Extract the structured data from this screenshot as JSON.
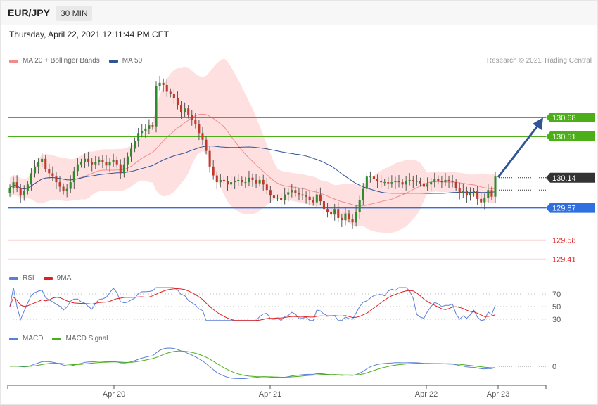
{
  "header": {
    "pair": "EUR/JPY",
    "timeframe": "30 MIN",
    "datetime": "Thursday, April 22, 2021 12:11:44 PM CET"
  },
  "legend_main": [
    {
      "label": "MA 20 + Bollinger Bands",
      "color": "#f28b8b"
    },
    {
      "label": "MA 50",
      "color": "#2f5597"
    }
  ],
  "legend_rsi": [
    {
      "label": "RSI",
      "color": "#5b7fd9"
    },
    {
      "label": "9MA",
      "color": "#e02020"
    }
  ],
  "legend_macd": [
    {
      "label": "MACD",
      "color": "#5b7fd9"
    },
    {
      "label": "MACD Signal",
      "color": "#4caf1a"
    }
  ],
  "credit": "Research © 2021 Trading Central",
  "chart_data": {
    "type": "candlestick",
    "x_ticks": [
      "Apr 20",
      "Apr 21",
      "Apr 22",
      "Apr 23"
    ],
    "price_levels": [
      {
        "label": "130.68",
        "value": 130.68,
        "kind": "resistance",
        "color": "#4caf1a"
      },
      {
        "label": "130.51",
        "value": 130.51,
        "kind": "resistance",
        "color": "#4caf1a"
      },
      {
        "label": "130.14",
        "value": 130.14,
        "kind": "last",
        "color": "#333333"
      },
      {
        "label": "129.87",
        "value": 129.87,
        "kind": "pivot",
        "color": "#2f6fe0"
      },
      {
        "label": "129.58",
        "value": 129.58,
        "kind": "support",
        "color": "#e02020"
      },
      {
        "label": "129.41",
        "value": 129.41,
        "kind": "support",
        "color": "#e02020"
      }
    ],
    "rsi_levels": [
      {
        "label": "70",
        "value": 70
      },
      {
        "label": "50",
        "value": 50
      },
      {
        "label": "30",
        "value": 30
      }
    ],
    "macd_levels": [
      {
        "label": "0",
        "value": 0
      }
    ],
    "close": [
      130.05,
      130.1,
      130.05,
      129.98,
      130.02,
      130.08,
      130.18,
      130.24,
      130.28,
      130.31,
      130.22,
      130.18,
      130.15,
      130.1,
      130.06,
      130.02,
      130.04,
      130.1,
      130.2,
      130.26,
      130.28,
      130.31,
      130.28,
      130.26,
      130.28,
      130.3,
      130.28,
      130.25,
      130.28,
      130.3,
      130.26,
      130.18,
      130.26,
      130.33,
      130.4,
      130.47,
      130.54,
      130.56,
      130.58,
      130.61,
      130.6,
      130.96,
      130.99,
      130.97,
      130.91,
      130.89,
      130.85,
      130.79,
      130.73,
      130.76,
      130.7,
      130.66,
      130.62,
      130.54,
      130.48,
      130.38,
      130.24,
      130.16,
      130.1,
      130.12,
      130.11,
      130.08,
      130.1,
      130.11,
      130.12,
      130.1,
      130.1,
      130.14,
      130.12,
      130.09,
      130.12,
      130.08,
      130.03,
      129.98,
      129.96,
      129.96,
      129.94,
      129.99,
      130.01,
      130.03,
      130.0,
      129.99,
      129.98,
      129.97,
      129.94,
      129.92,
      129.99,
      129.93,
      129.86,
      129.83,
      129.81,
      129.86,
      129.78,
      129.76,
      129.82,
      129.77,
      129.74,
      129.83,
      129.94,
      130.04,
      130.15,
      130.15,
      130.13,
      130.11,
      130.1,
      130.1,
      130.09,
      130.1,
      130.11,
      130.1,
      130.08,
      130.11,
      130.12,
      130.11,
      130.11,
      130.09,
      130.06,
      130.08,
      130.1,
      130.13,
      130.11,
      130.1,
      130.12,
      130.11,
      130.1,
      130.05,
      130.0,
      130.02,
      129.98,
      130.0,
      130.02,
      129.95,
      129.92,
      129.96,
      130.03,
      129.97,
      130.15
    ]
  }
}
